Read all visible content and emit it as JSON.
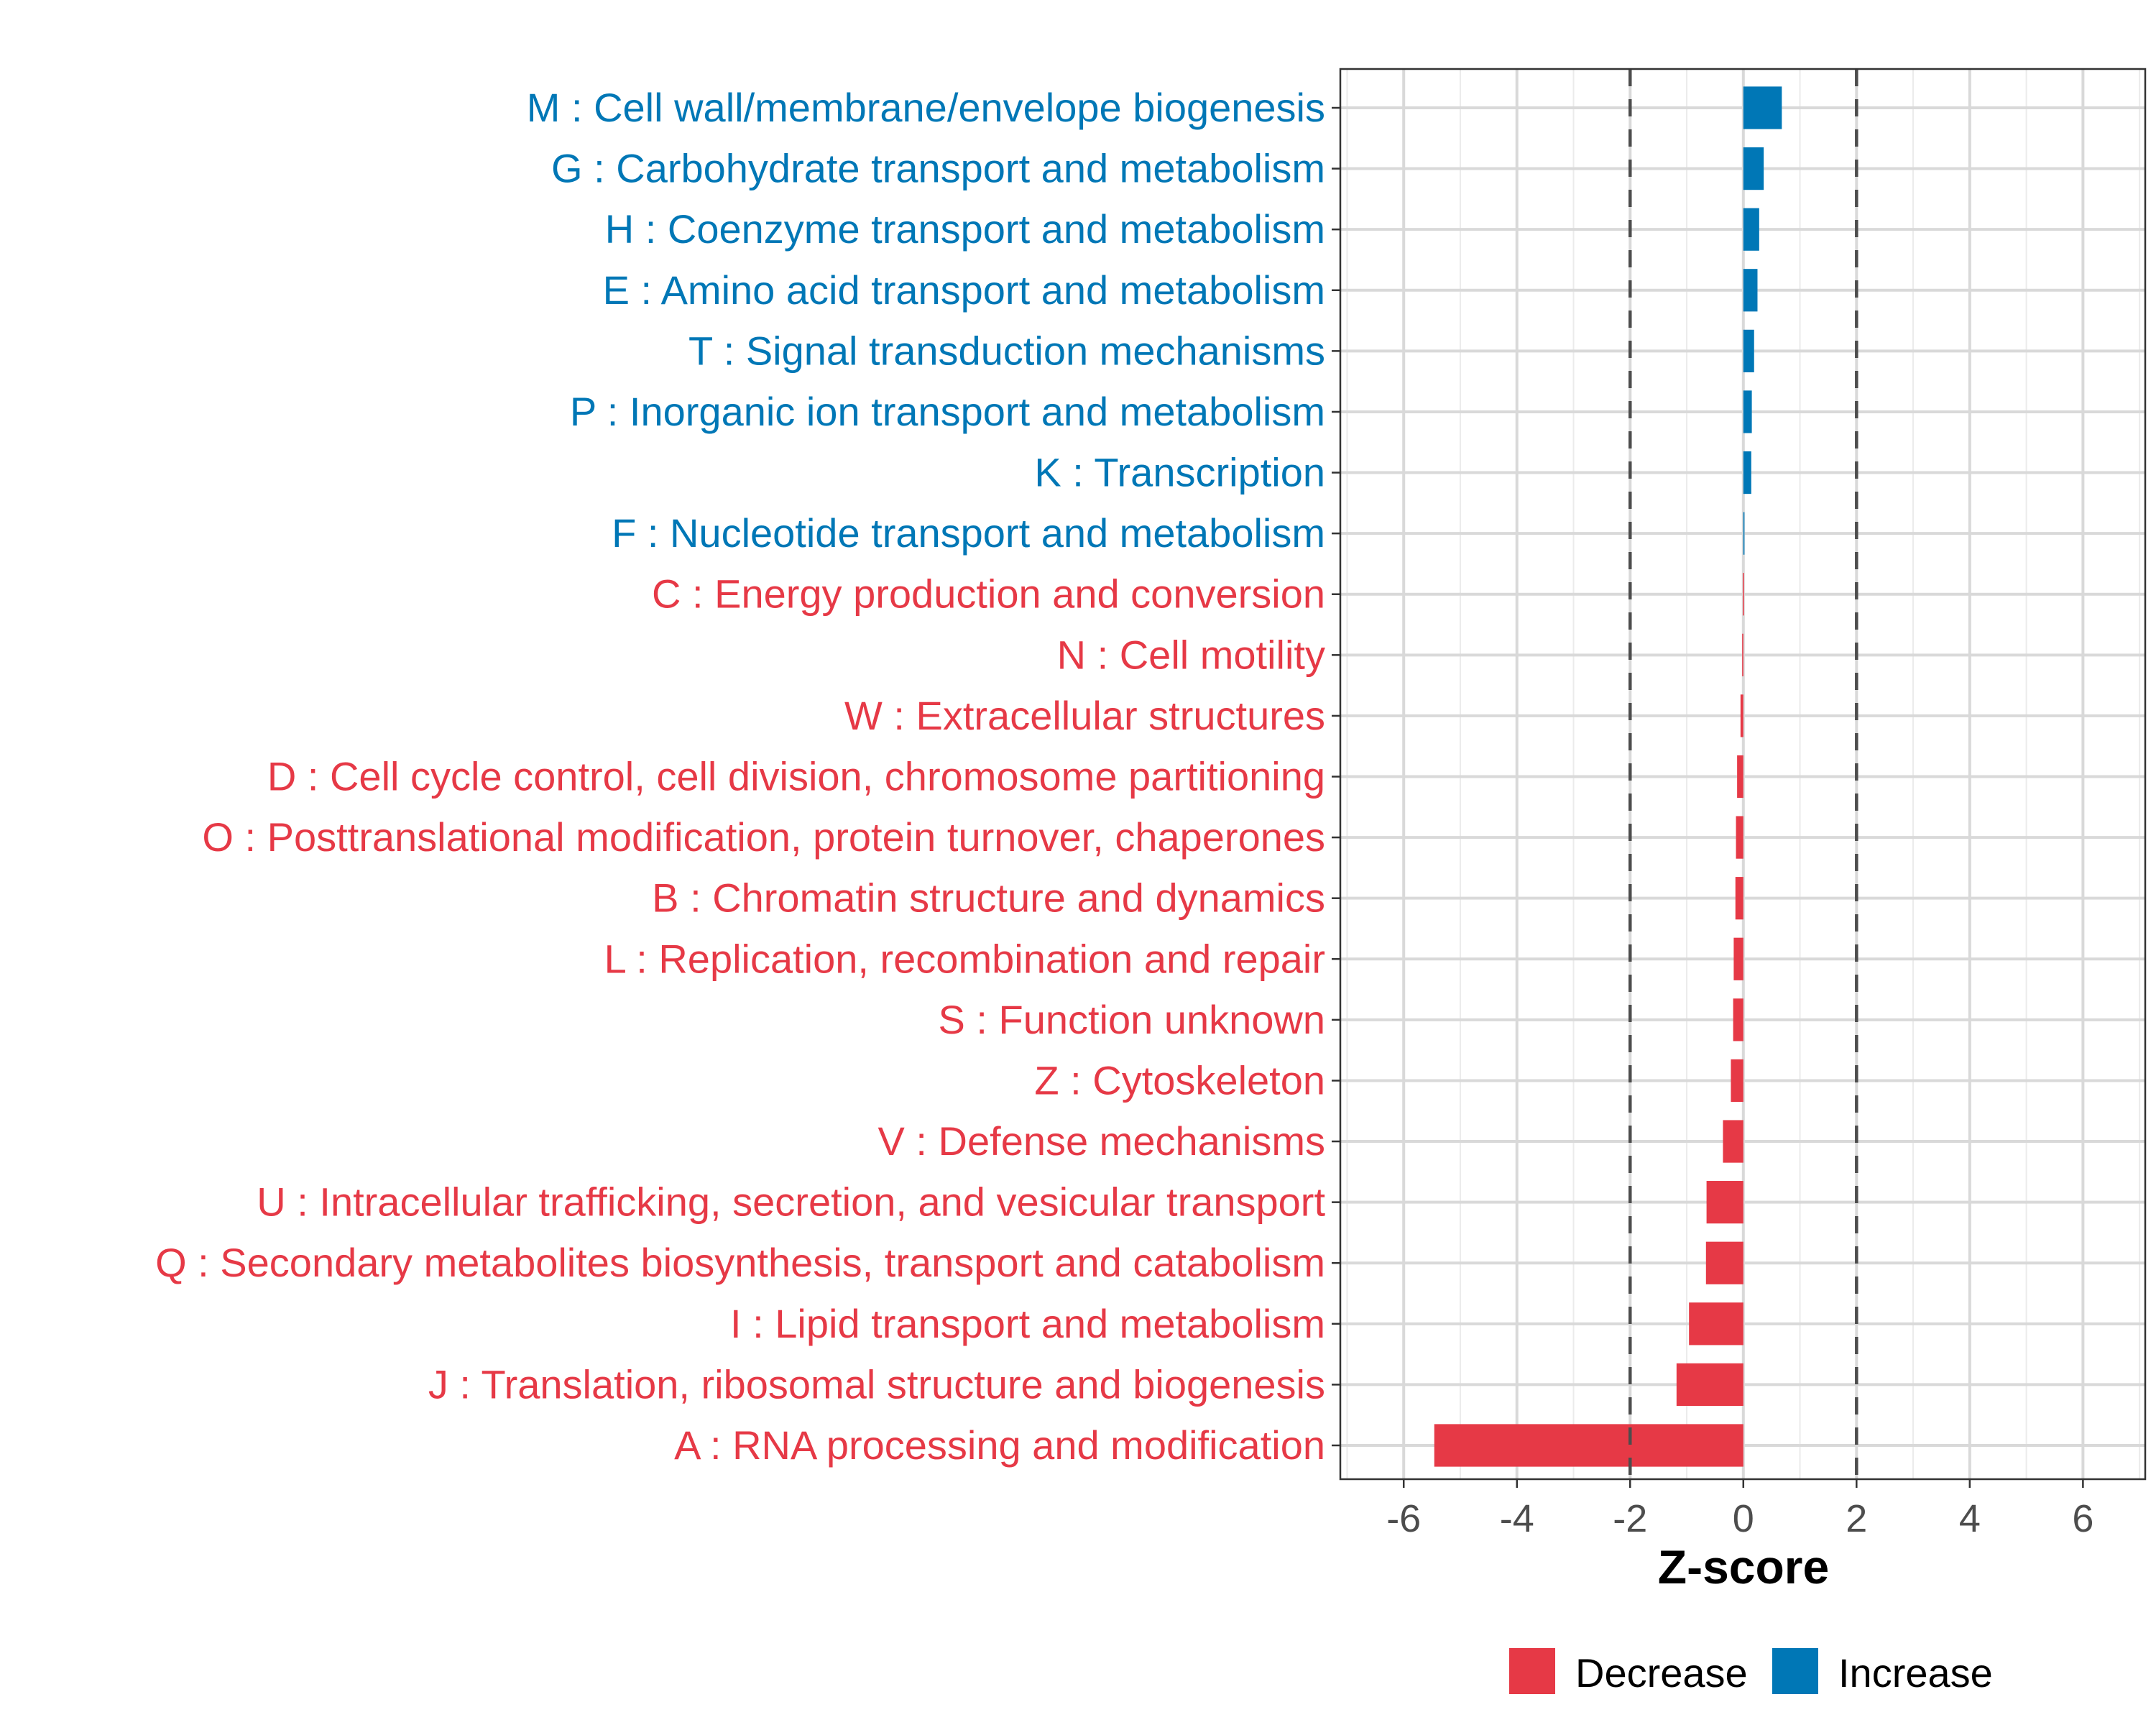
{
  "chart_data": {
    "type": "bar",
    "orientation": "horizontal",
    "title": "",
    "xlabel": "Z-score",
    "ylabel": "",
    "xlim": [
      -7.12,
      7.1
    ],
    "xticks": [
      -6,
      -4,
      -2,
      0,
      2,
      4,
      6
    ],
    "xtick_labels": [
      "-6",
      "-4",
      "-2",
      "0",
      "2",
      "4",
      "6"
    ],
    "reference_lines": [
      -2,
      2
    ],
    "grid": true,
    "categories": [
      "M : Cell wall/membrane/envelope biogenesis",
      "G : Carbohydrate transport and metabolism",
      "H : Coenzyme transport and metabolism",
      "E : Amino acid transport and metabolism",
      "T : Signal transduction mechanisms",
      "P : Inorganic ion transport and metabolism",
      "K : Transcription",
      "F : Nucleotide transport and metabolism",
      "C : Energy production and conversion",
      "N : Cell motility",
      "W : Extracellular structures",
      "D : Cell cycle control, cell division, chromosome partitioning",
      "O : Posttranslational modification, protein turnover, chaperones",
      "B : Chromatin structure and dynamics",
      "L : Replication, recombination and repair",
      "S : Function unknown",
      "Z : Cytoskeleton",
      "V : Defense mechanisms",
      "U : Intracellular trafficking, secretion, and vesicular transport",
      "Q : Secondary metabolites biosynthesis, transport and catabolism",
      "I : Lipid transport and metabolism",
      "J : Translation, ribosomal structure and biogenesis",
      "A : RNA processing and modification"
    ],
    "values": [
      0.68,
      0.36,
      0.28,
      0.25,
      0.19,
      0.15,
      0.14,
      0.02,
      -0.01,
      -0.02,
      -0.05,
      -0.11,
      -0.13,
      -0.14,
      -0.17,
      -0.18,
      -0.22,
      -0.36,
      -0.65,
      -0.66,
      -0.96,
      -1.18,
      -5.46
    ],
    "legend": {
      "placement": "bottom",
      "entries": [
        {
          "label": "Decrease",
          "color": "#E63946"
        },
        {
          "label": "Increase",
          "color": "#0077B6"
        }
      ]
    },
    "colors": {
      "increase": "#0077B6",
      "decrease": "#E63946"
    }
  }
}
